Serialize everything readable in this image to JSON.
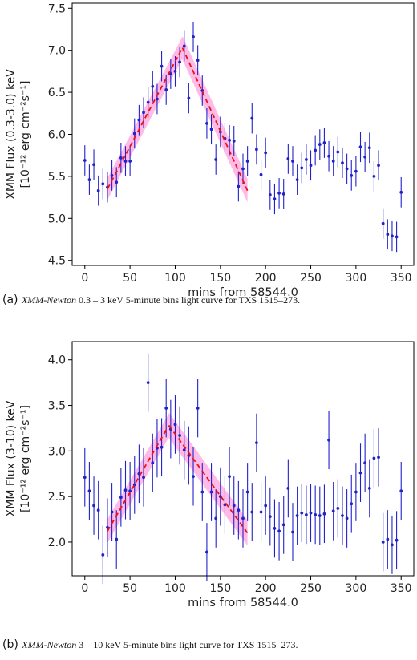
{
  "chart_data": [
    {
      "type": "scatter",
      "panel_label": "(a)",
      "caption_italic": "XMM-Newton",
      "caption_rest": " 0.3 – 3 keV 5-minute bins light curve for TXS 1515–273.",
      "xlabel": "mins from 58544.0",
      "ylabel_line1": "XMM Flux (0.3-3.0) keV",
      "ylabel_line2": "[10⁻¹² erg cm⁻²s⁻¹]",
      "xlim": [
        -14,
        364
      ],
      "ylim": [
        4.44,
        7.56
      ],
      "xticks": [
        0,
        50,
        100,
        150,
        200,
        250,
        300,
        350
      ],
      "yticks": [
        4.5,
        5.0,
        5.5,
        6.0,
        6.5,
        7.0,
        7.5
      ],
      "ytick_labels": [
        "4.5",
        "5.0",
        "5.5",
        "6.0",
        "6.5",
        "7.0",
        "7.5"
      ],
      "grid": false,
      "series": [
        {
          "color": "#2222cc",
          "points": [
            [
              0,
              5.69,
              0.18
            ],
            [
              5,
              5.46,
              0.18
            ],
            [
              10,
              5.64,
              0.18
            ],
            [
              15,
              5.33,
              0.18
            ],
            [
              20,
              5.41,
              0.18
            ],
            [
              25,
              5.37,
              0.18
            ],
            [
              30,
              5.51,
              0.18
            ],
            [
              35,
              5.43,
              0.18
            ],
            [
              40,
              5.72,
              0.18
            ],
            [
              45,
              5.68,
              0.18
            ],
            [
              50,
              5.68,
              0.18
            ],
            [
              55,
              6.01,
              0.18
            ],
            [
              60,
              6.17,
              0.18
            ],
            [
              65,
              6.26,
              0.18
            ],
            [
              70,
              6.38,
              0.18
            ],
            [
              75,
              6.57,
              0.18
            ],
            [
              80,
              6.42,
              0.18
            ],
            [
              85,
              6.81,
              0.18
            ],
            [
              90,
              6.53,
              0.18
            ],
            [
              95,
              6.72,
              0.18
            ],
            [
              100,
              6.75,
              0.18
            ],
            [
              105,
              6.86,
              0.18
            ],
            [
              110,
              7.05,
              0.18
            ],
            [
              115,
              6.43,
              0.18
            ],
            [
              120,
              7.16,
              0.18
            ],
            [
              125,
              6.88,
              0.18
            ],
            [
              130,
              6.52,
              0.18
            ],
            [
              135,
              6.13,
              0.18
            ],
            [
              140,
              6.06,
              0.18
            ],
            [
              145,
              5.7,
              0.18
            ],
            [
              150,
              6.03,
              0.18
            ],
            [
              155,
              5.95,
              0.18
            ],
            [
              160,
              5.93,
              0.18
            ],
            [
              165,
              5.92,
              0.18
            ],
            [
              170,
              5.38,
              0.18
            ],
            [
              175,
              5.59,
              0.18
            ],
            [
              180,
              5.68,
              0.18
            ],
            [
              185,
              6.19,
              0.18
            ],
            [
              190,
              5.82,
              0.18
            ],
            [
              195,
              5.52,
              0.18
            ],
            [
              200,
              5.78,
              0.18
            ],
            [
              205,
              5.28,
              0.18
            ],
            [
              210,
              5.23,
              0.18
            ],
            [
              215,
              5.3,
              0.18
            ],
            [
              220,
              5.29,
              0.18
            ],
            [
              225,
              5.71,
              0.18
            ],
            [
              230,
              5.68,
              0.18
            ],
            [
              235,
              5.46,
              0.18
            ],
            [
              240,
              5.6,
              0.18
            ],
            [
              245,
              5.7,
              0.18
            ],
            [
              250,
              5.63,
              0.18
            ],
            [
              255,
              5.81,
              0.18
            ],
            [
              260,
              5.88,
              0.18
            ],
            [
              265,
              5.9,
              0.18
            ],
            [
              270,
              5.74,
              0.18
            ],
            [
              275,
              5.68,
              0.18
            ],
            [
              280,
              5.79,
              0.18
            ],
            [
              285,
              5.66,
              0.18
            ],
            [
              290,
              5.59,
              0.18
            ],
            [
              295,
              5.51,
              0.18
            ],
            [
              300,
              5.56,
              0.18
            ],
            [
              305,
              5.85,
              0.18
            ],
            [
              310,
              5.73,
              0.18
            ],
            [
              315,
              5.84,
              0.18
            ],
            [
              320,
              5.5,
              0.18
            ],
            [
              325,
              5.63,
              0.18
            ],
            [
              330,
              4.94,
              0.18
            ],
            [
              335,
              4.81,
              0.18
            ],
            [
              340,
              4.79,
              0.18
            ],
            [
              345,
              4.78,
              0.18
            ],
            [
              350,
              5.31,
              0.18
            ]
          ]
        }
      ],
      "fit": {
        "color": "#ee1111",
        "band_color": "#ff66cc",
        "rise": {
          "x": [
            25,
            108
          ],
          "y": [
            5.35,
            7.03
          ],
          "band": 0.13
        },
        "decay": {
          "x": [
            108,
            180
          ],
          "y": [
            7.03,
            5.33
          ],
          "band": 0.14
        }
      }
    },
    {
      "type": "scatter",
      "panel_label": "(b)",
      "caption_italic": "XMM-Newton",
      "caption_rest": " 3 – 10 keV 5-minute bins light curve for TXS 1515–273.",
      "xlabel": "mins from 58544.0",
      "ylabel_line1": "XMM Flux (3-10) keV",
      "ylabel_line2": "[10⁻¹² erg cm⁻²s⁻¹]",
      "xlim": [
        -14,
        364
      ],
      "ylim": [
        1.63,
        4.2
      ],
      "xticks": [
        0,
        50,
        100,
        150,
        200,
        250,
        300,
        350
      ],
      "yticks": [
        2.0,
        2.5,
        3.0,
        3.5,
        4.0
      ],
      "ytick_labels": [
        "2.0",
        "2.5",
        "3.0",
        "3.5",
        "4.0"
      ],
      "grid": false,
      "series": [
        {
          "color": "#2222cc",
          "points": [
            [
              0,
              2.71,
              0.32
            ],
            [
              5,
              2.56,
              0.32
            ],
            [
              10,
              2.4,
              0.32
            ],
            [
              15,
              2.35,
              0.32
            ],
            [
              20,
              1.86,
              0.32
            ],
            [
              25,
              2.16,
              0.32
            ],
            [
              30,
              2.33,
              0.32
            ],
            [
              35,
              2.03,
              0.32
            ],
            [
              40,
              2.49,
              0.32
            ],
            [
              45,
              2.57,
              0.32
            ],
            [
              50,
              2.56,
              0.32
            ],
            [
              55,
              2.63,
              0.32
            ],
            [
              60,
              2.75,
              0.32
            ],
            [
              65,
              2.71,
              0.32
            ],
            [
              70,
              3.75,
              0.32
            ],
            [
              75,
              2.87,
              0.32
            ],
            [
              80,
              3.03,
              0.32
            ],
            [
              85,
              3.04,
              0.32
            ],
            [
              90,
              3.47,
              0.32
            ],
            [
              95,
              3.24,
              0.32
            ],
            [
              100,
              3.29,
              0.32
            ],
            [
              105,
              3.17,
              0.32
            ],
            [
              110,
              3.01,
              0.32
            ],
            [
              115,
              2.95,
              0.32
            ],
            [
              120,
              2.72,
              0.32
            ],
            [
              125,
              3.47,
              0.32
            ],
            [
              130,
              2.55,
              0.32
            ],
            [
              135,
              1.89,
              0.32
            ],
            [
              140,
              2.55,
              0.32
            ],
            [
              145,
              2.26,
              0.32
            ],
            [
              150,
              2.5,
              0.32
            ],
            [
              155,
              2.41,
              0.32
            ],
            [
              160,
              2.72,
              0.32
            ],
            [
              165,
              2.4,
              0.32
            ],
            [
              170,
              2.35,
              0.32
            ],
            [
              175,
              2.26,
              0.32
            ],
            [
              180,
              2.55,
              0.32
            ],
            [
              185,
              2.33,
              0.32
            ],
            [
              190,
              3.09,
              0.32
            ],
            [
              195,
              2.33,
              0.32
            ],
            [
              200,
              2.4,
              0.32
            ],
            [
              205,
              2.28,
              0.32
            ],
            [
              210,
              2.15,
              0.32
            ],
            [
              215,
              2.12,
              0.32
            ],
            [
              220,
              2.19,
              0.32
            ],
            [
              225,
              2.59,
              0.32
            ],
            [
              230,
              2.11,
              0.32
            ],
            [
              235,
              2.29,
              0.32
            ],
            [
              240,
              2.32,
              0.32
            ],
            [
              245,
              2.3,
              0.32
            ],
            [
              250,
              2.32,
              0.32
            ],
            [
              255,
              2.3,
              0.32
            ],
            [
              260,
              2.29,
              0.32
            ],
            [
              265,
              2.31,
              0.32
            ],
            [
              270,
              3.12,
              0.32
            ],
            [
              275,
              2.34,
              0.32
            ],
            [
              280,
              2.37,
              0.32
            ],
            [
              285,
              2.29,
              0.32
            ],
            [
              290,
              2.26,
              0.32
            ],
            [
              295,
              2.42,
              0.32
            ],
            [
              300,
              2.55,
              0.32
            ],
            [
              305,
              2.76,
              0.32
            ],
            [
              310,
              2.87,
              0.32
            ],
            [
              315,
              2.59,
              0.32
            ],
            [
              320,
              2.92,
              0.32
            ],
            [
              325,
              2.93,
              0.32
            ],
            [
              330,
              2.0,
              0.32
            ],
            [
              335,
              2.03,
              0.32
            ],
            [
              340,
              1.97,
              0.32
            ],
            [
              345,
              2.02,
              0.32
            ],
            [
              350,
              2.56,
              0.32
            ]
          ]
        }
      ],
      "fit": {
        "color": "#ee1111",
        "band_color": "#ff66cc",
        "rise": {
          "x": [
            25,
            93
          ],
          "y": [
            2.12,
            3.28
          ],
          "band": 0.13
        },
        "decay": {
          "x": [
            93,
            180
          ],
          "y": [
            3.28,
            2.1
          ],
          "band": 0.14
        }
      }
    }
  ]
}
